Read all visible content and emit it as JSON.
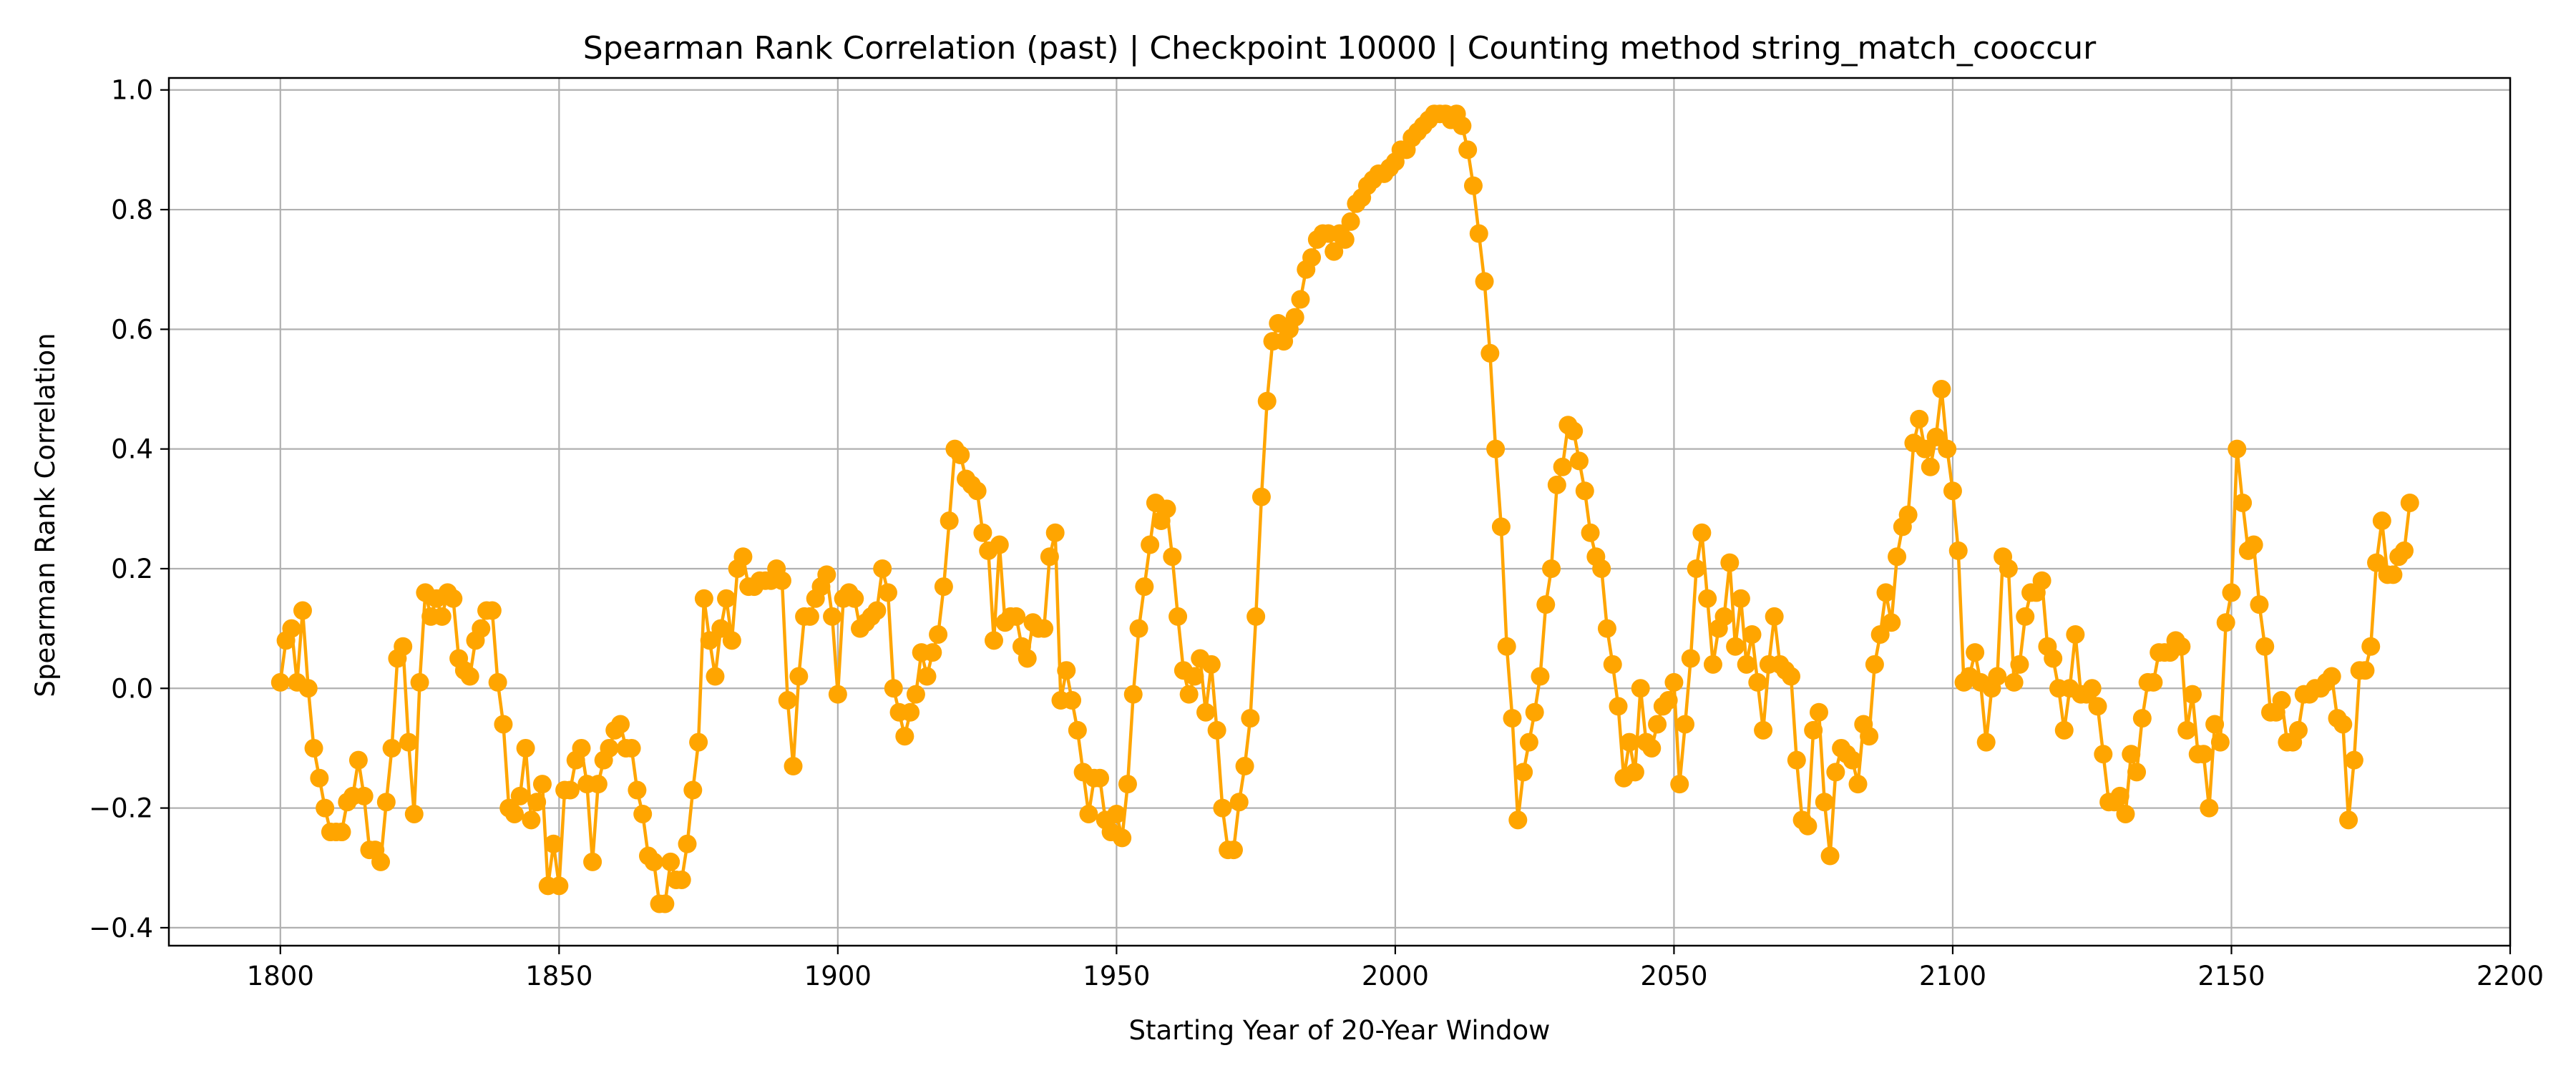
{
  "chart_data": {
    "type": "line",
    "title": "Spearman Rank Correlation (past) | Checkpoint 10000 | Counting method string_match_cooccur",
    "xlabel": "Starting Year of 20-Year Window",
    "ylabel": "Spearman Rank Correlation",
    "xlim": [
      1780,
      2200
    ],
    "ylim": [
      -0.43,
      1.02
    ],
    "xticks": [
      1800,
      1850,
      1900,
      1950,
      2000,
      2050,
      2100,
      2150,
      2200
    ],
    "yticks": [
      -0.4,
      -0.2,
      0.0,
      0.2,
      0.4,
      0.6,
      0.8,
      1.0
    ],
    "ytick_labels": [
      "−0.4",
      "−0.2",
      "0.0",
      "0.2",
      "0.4",
      "0.6",
      "0.8",
      "1.0"
    ],
    "grid": true,
    "marker": "circle",
    "color": "#FFA500",
    "series": [
      {
        "x_start": 1800,
        "x_step": 1,
        "values": [
          0.01,
          0.08,
          0.1,
          0.01,
          0.13,
          0.0,
          -0.1,
          -0.15,
          -0.2,
          -0.24,
          -0.24,
          -0.24,
          -0.19,
          -0.18,
          -0.12,
          -0.18,
          -0.27,
          -0.27,
          -0.29,
          -0.19,
          -0.1,
          0.05,
          0.07,
          -0.09,
          -0.21,
          0.01,
          0.16,
          0.12,
          0.15,
          0.12,
          0.16,
          0.15,
          0.05,
          0.03,
          0.02,
          0.08,
          0.1,
          0.13,
          0.13,
          0.01,
          -0.06,
          -0.2,
          -0.21,
          -0.18,
          -0.1,
          -0.22,
          -0.19,
          -0.16,
          -0.33,
          -0.26,
          -0.33,
          -0.17,
          -0.17,
          -0.12,
          -0.1,
          -0.16,
          -0.29,
          -0.16,
          -0.12,
          -0.1,
          -0.07,
          -0.06,
          -0.1,
          -0.1,
          -0.17,
          -0.21,
          -0.28,
          -0.29,
          -0.36,
          -0.36,
          -0.29,
          -0.32,
          -0.32,
          -0.26,
          -0.17,
          -0.09,
          0.15,
          0.08,
          0.02,
          0.1,
          0.15,
          0.08,
          0.2,
          0.22,
          0.17,
          0.17,
          0.18,
          0.18,
          0.18,
          0.2,
          0.18,
          -0.02,
          -0.13,
          0.02,
          0.12,
          0.12,
          0.15,
          0.17,
          0.19,
          0.12,
          -0.01,
          0.15,
          0.16,
          0.15,
          0.1,
          0.11,
          0.12,
          0.13,
          0.2,
          0.16,
          0.0,
          -0.04,
          -0.08,
          -0.04,
          -0.01,
          0.06,
          0.02,
          0.06,
          0.09,
          0.17,
          0.28,
          0.4,
          0.39,
          0.35,
          0.34,
          0.33,
          0.26,
          0.23,
          0.08,
          0.24,
          0.11,
          0.12,
          0.12,
          0.07,
          0.05,
          0.11,
          0.1,
          0.1,
          0.22,
          0.26,
          -0.02,
          0.03,
          -0.02,
          -0.07,
          -0.14,
          -0.21,
          -0.15,
          -0.15,
          -0.22,
          -0.24,
          -0.21,
          -0.25,
          -0.16,
          -0.01,
          0.1,
          0.17,
          0.24,
          0.31,
          0.28,
          0.3,
          0.22,
          0.12,
          0.03,
          -0.01,
          0.02,
          0.05,
          -0.04,
          0.04,
          -0.07,
          -0.2,
          -0.27,
          -0.27,
          -0.19,
          -0.13,
          -0.05,
          0.12,
          0.32,
          0.48,
          0.58,
          0.61,
          0.58,
          0.6,
          0.62,
          0.65,
          0.7,
          0.72,
          0.75,
          0.76,
          0.76,
          0.73,
          0.76,
          0.75,
          0.78,
          0.81,
          0.82,
          0.84,
          0.85,
          0.86,
          0.86,
          0.87,
          0.88,
          0.9,
          0.9,
          0.92,
          0.93,
          0.94,
          0.95,
          0.96,
          0.96,
          0.96,
          0.95,
          0.96,
          0.94,
          0.9,
          0.84,
          0.76,
          0.68,
          0.56,
          0.4,
          0.27,
          0.07,
          -0.05,
          -0.22,
          -0.14,
          -0.09,
          -0.04,
          0.02,
          0.14,
          0.2,
          0.34,
          0.37,
          0.44,
          0.43,
          0.38,
          0.33,
          0.26,
          0.22,
          0.2,
          0.1,
          0.04,
          -0.03,
          -0.15,
          -0.09,
          -0.14,
          0.0,
          -0.09,
          -0.1,
          -0.06,
          -0.03,
          -0.02,
          0.01,
          -0.16,
          -0.06,
          0.05,
          0.2,
          0.26,
          0.15,
          0.04,
          0.1,
          0.12,
          0.21,
          0.07,
          0.15,
          0.04,
          0.09,
          0.01,
          -0.07,
          0.04,
          0.12,
          0.04,
          0.03,
          0.02,
          -0.12,
          -0.22,
          -0.23,
          -0.07,
          -0.04,
          -0.19,
          -0.28,
          -0.14,
          -0.1,
          -0.11,
          -0.12,
          -0.16,
          -0.06,
          -0.08,
          0.04,
          0.09,
          0.16,
          0.11,
          0.22,
          0.27,
          0.29,
          0.41,
          0.45,
          0.4,
          0.37,
          0.42,
          0.5,
          0.4,
          0.33,
          0.23,
          0.01,
          0.02,
          0.06,
          0.01,
          -0.09,
          0.0,
          0.02,
          0.22,
          0.2,
          0.01,
          0.04,
          0.12,
          0.16,
          0.16,
          0.18,
          0.07,
          0.05,
          0.0,
          -0.07,
          0.0,
          0.09,
          -0.01,
          -0.01,
          0.0,
          -0.03,
          -0.11,
          -0.19,
          -0.19,
          -0.18,
          -0.21,
          -0.11,
          -0.14,
          -0.05,
          0.01,
          0.01,
          0.06,
          0.06,
          0.06,
          0.08,
          0.07,
          -0.07,
          -0.01,
          -0.11,
          -0.11,
          -0.2,
          -0.06,
          -0.09,
          0.11,
          0.16,
          0.4,
          0.31,
          0.23,
          0.24,
          0.14,
          0.07,
          -0.04,
          -0.04,
          -0.02,
          -0.09,
          -0.09,
          -0.07,
          -0.01,
          -0.01,
          0.0,
          0.0,
          0.01,
          0.02,
          -0.05,
          -0.06,
          -0.22,
          -0.12,
          0.03,
          0.03,
          0.07,
          0.21,
          0.28,
          0.19,
          0.19,
          0.22,
          0.23,
          0.31
        ]
      }
    ]
  }
}
